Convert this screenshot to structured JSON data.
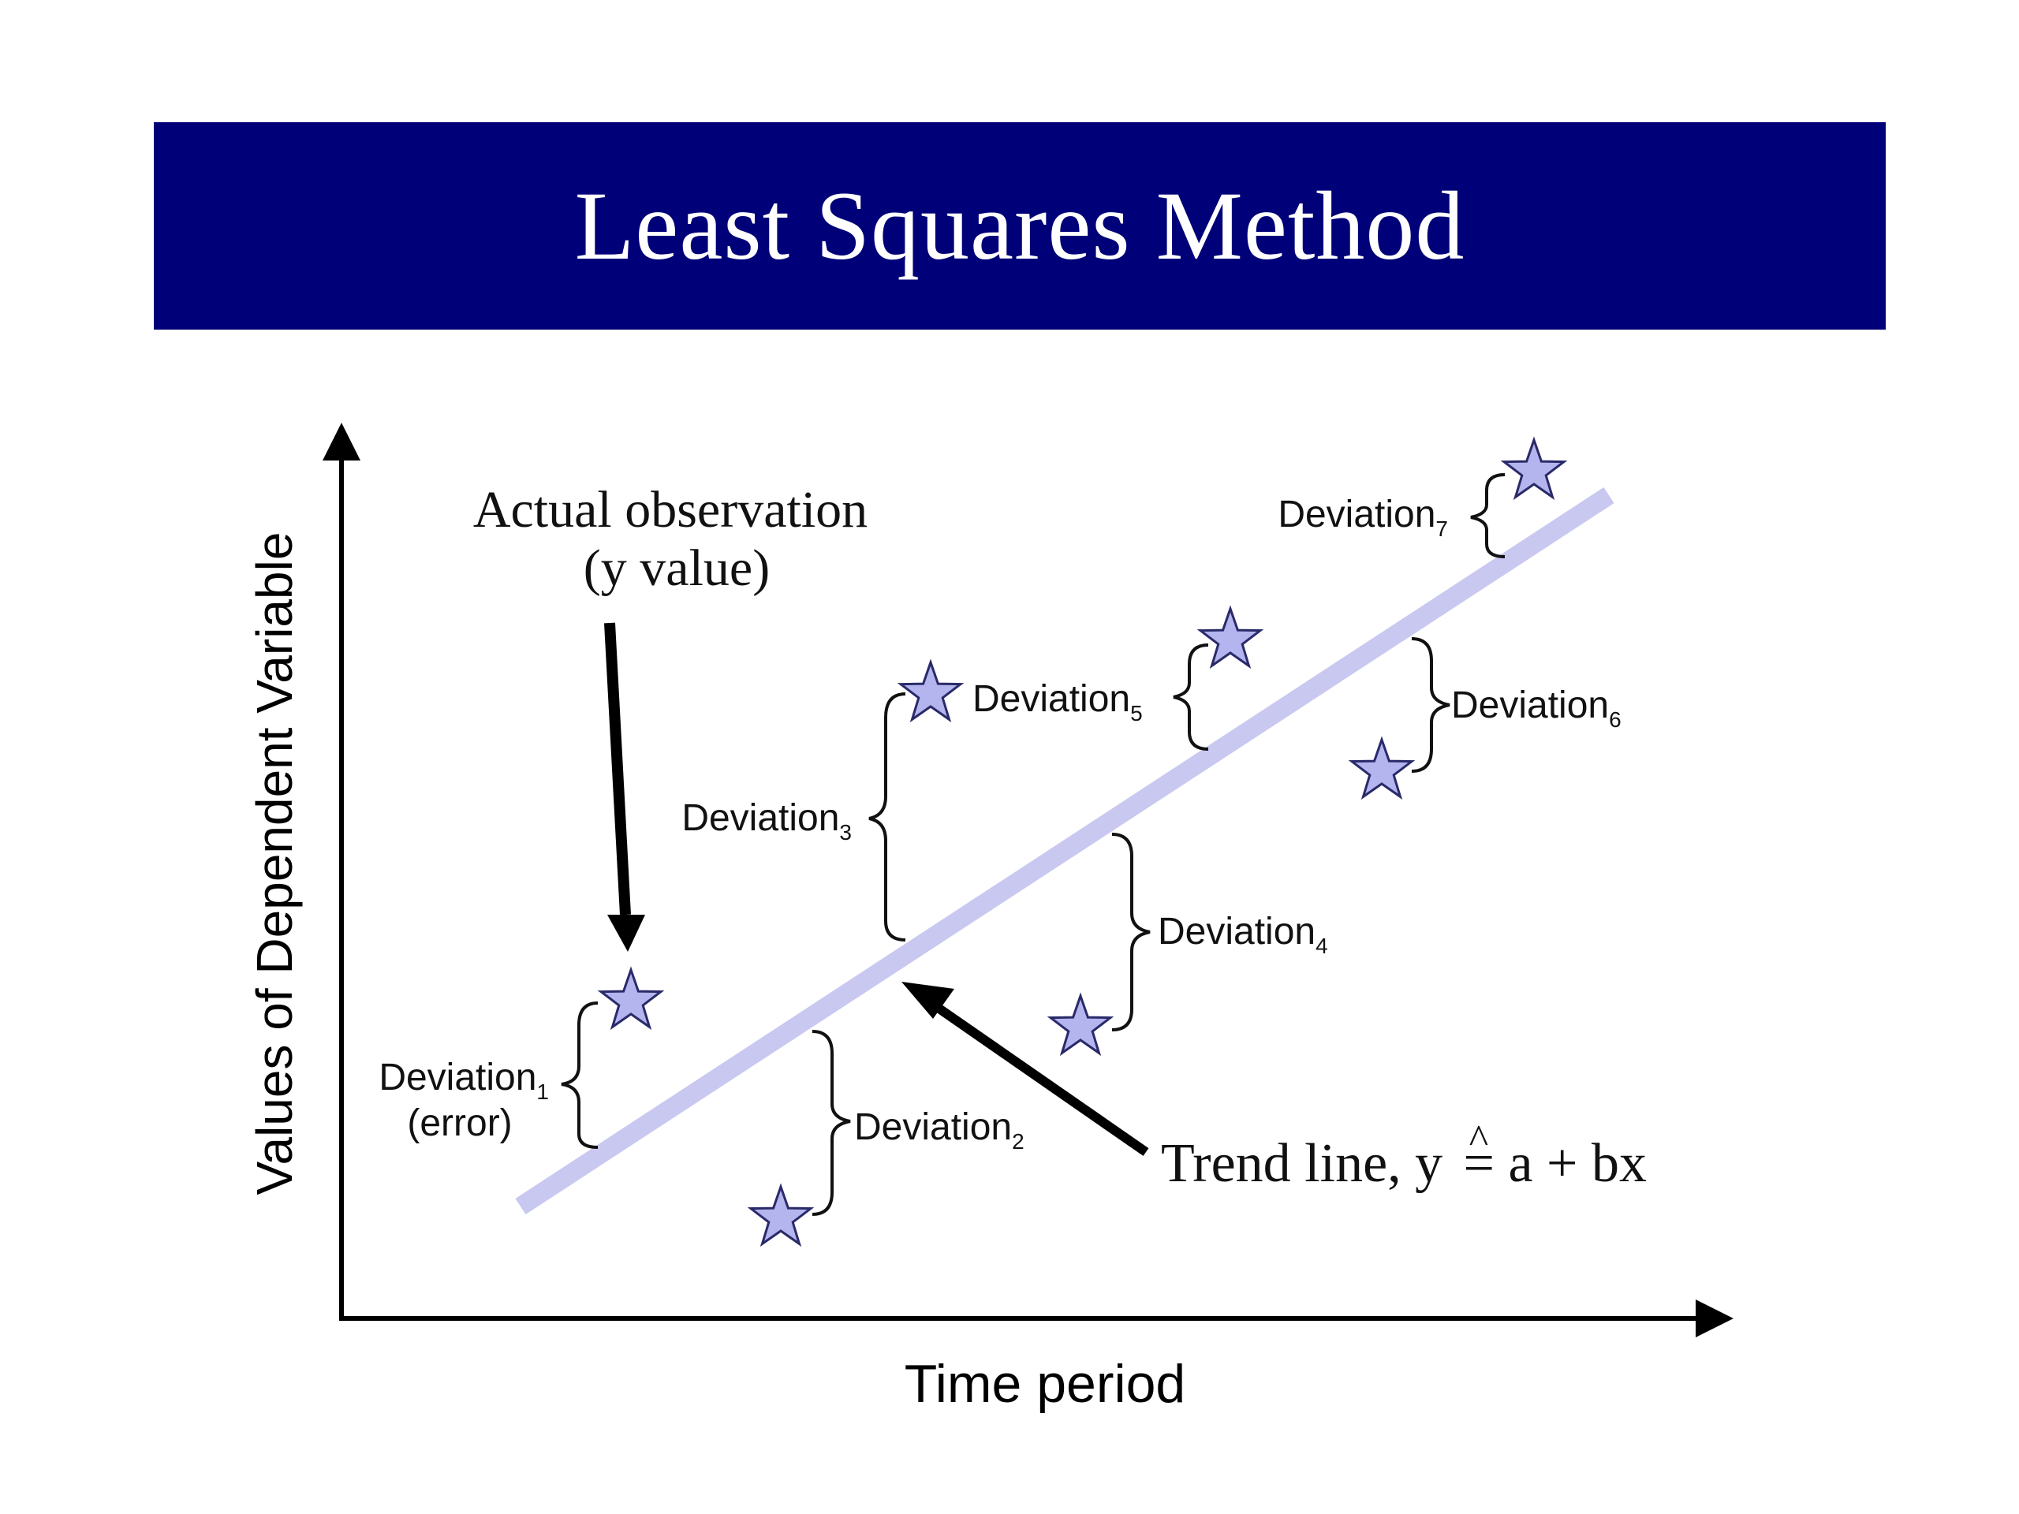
{
  "title": "Least Squares Method",
  "colors": {
    "banner": "#000078",
    "trend_line": "#c8c8f0",
    "star_fill": "#b4b4ee",
    "star_stroke": "#2a2a6a"
  },
  "axes": {
    "y_label": "Values of Dependent Variable",
    "x_label": "Time period"
  },
  "annotations": {
    "observation_line1": "Actual observation",
    "observation_line2": "(y value)",
    "trend_prefix": "Trend line, y",
    "trend_hat": "^",
    "trend_suffix": " = a + bx",
    "error": "(error)"
  },
  "deviation_word": "Deviation",
  "deviations": [
    "1",
    "2",
    "3",
    "4",
    "5",
    "6",
    "7"
  ],
  "icons": {
    "observation": "star-icon",
    "arrow": "arrow-icon",
    "brace": "curly-brace-icon"
  }
}
